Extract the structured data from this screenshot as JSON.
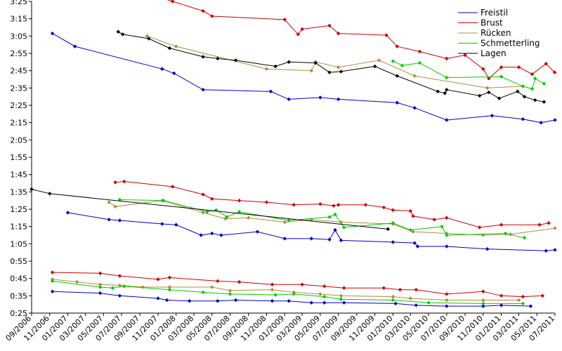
{
  "chart_data": {
    "type": "line",
    "title": "",
    "xlabel": "",
    "ylabel": "",
    "legend_position": "top-right",
    "grid": false,
    "x_range": [
      "2006-09-01",
      "2011-07-01"
    ],
    "y_range_seconds": [
      25,
      205
    ],
    "y_ticks": [
      "0:25",
      "0:35",
      "0:45",
      "0:55",
      "1:05",
      "1:15",
      "1:25",
      "1:35",
      "1:45",
      "1:55",
      "2:05",
      "2:15",
      "2:25",
      "2:35",
      "2:45",
      "2:55",
      "3:05",
      "3:15",
      "3:25"
    ],
    "x_ticks": [
      "09/2006",
      "11/2006",
      "01/2007",
      "03/2007",
      "05/2007",
      "07/2007",
      "09/2007",
      "11/2007",
      "01/2008",
      "03/2008",
      "05/2008",
      "07/2008",
      "09/2008",
      "11/2008",
      "01/2009",
      "03/2009",
      "05/2009",
      "07/2009",
      "09/2009",
      "11/2009",
      "01/2010",
      "03/2010",
      "05/2010",
      "07/2010",
      "09/2010",
      "11/2010",
      "01/2011",
      "03/2011",
      "05/2011",
      "07/2011"
    ],
    "series": [
      {
        "name": "Freistil",
        "color": "#0000cc",
        "lines": [
          [
            [
              "2006-11-10",
              "0:37.5"
            ],
            [
              "2007-04-20",
              "0:36.5"
            ],
            [
              "2007-06-25",
              "0:35"
            ],
            [
              "2007-11-01",
              "0:33.5"
            ],
            [
              "2007-12-01",
              "0:32.5"
            ],
            [
              "2008-02-15",
              "0:32"
            ],
            [
              "2008-05-20",
              "0:32"
            ],
            [
              "2008-07-20",
              "0:32.5"
            ],
            [
              "2008-11-20",
              "0:32"
            ],
            [
              "2009-01-15",
              "0:32"
            ],
            [
              "2009-04-01",
              "0:31"
            ],
            [
              "2009-05-15",
              "0:31"
            ],
            [
              "2009-07-20",
              "0:31"
            ],
            [
              "2010-01-10",
              "0:30.5"
            ],
            [
              "2010-03-20",
              "0:29.5"
            ],
            [
              "2010-07-01",
              "0:29"
            ],
            [
              "2010-11-01",
              "0:29"
            ],
            [
              "2011-01-01",
              "0:29.5"
            ],
            [
              "2011-04-10",
              "0:29"
            ]
          ],
          [
            [
              "2007-01-01",
              "1:23"
            ],
            [
              "2007-05-20",
              "1:19"
            ],
            [
              "2007-06-25",
              "1:18.5"
            ],
            [
              "2007-11-15",
              "1:16.5"
            ],
            [
              "2008-01-01",
              "1:16"
            ],
            [
              "2008-03-25",
              "1:10"
            ],
            [
              "2008-05-01",
              "1:11"
            ],
            [
              "2008-06-01",
              "1:10"
            ],
            [
              "2008-10-01",
              "1:12"
            ],
            [
              "2009-01-01",
              "1:08"
            ],
            [
              "2009-04-01",
              "1:08"
            ],
            [
              "2009-06-01",
              "1:07.5"
            ],
            [
              "2009-06-20",
              "1:13"
            ],
            [
              "2009-07-10",
              "1:07"
            ],
            [
              "2010-01-01",
              "1:06"
            ],
            [
              "2010-03-15",
              "1:05.5"
            ],
            [
              "2010-03-25",
              "1:03.5"
            ],
            [
              "2010-07-01",
              "1:03.5"
            ],
            [
              "2010-11-15",
              "1:02"
            ],
            [
              "2011-06-01",
              "1:01"
            ],
            [
              "2011-07-01",
              "1:01.5"
            ]
          ],
          [
            [
              "2006-11-10",
              "3:06.5"
            ],
            [
              "2007-01-25",
              "2:59"
            ],
            [
              "2007-11-15",
              "2:46"
            ],
            [
              "2007-12-25",
              "2:43.5"
            ],
            [
              "2008-04-01",
              "2:34"
            ],
            [
              "2008-11-15",
              "2:33"
            ],
            [
              "2009-01-15",
              "2:28.5"
            ],
            [
              "2009-05-01",
              "2:29.5"
            ],
            [
              "2009-07-01",
              "2:28.5"
            ],
            [
              "2010-01-15",
              "2:26.5"
            ],
            [
              "2010-03-15",
              "2:23.5"
            ],
            [
              "2010-07-01",
              "2:16.5"
            ],
            [
              "2010-12-01",
              "2:19"
            ],
            [
              "2011-03-15",
              "2:17"
            ],
            [
              "2011-05-15",
              "2:15"
            ],
            [
              "2011-07-01",
              "2:16.5"
            ]
          ]
        ]
      },
      {
        "name": "Brust",
        "color": "#cc0000",
        "lines": [
          [
            [
              "2006-11-10",
              "0:48.5"
            ],
            [
              "2007-04-20",
              "0:48"
            ],
            [
              "2007-06-25",
              "0:46.5"
            ],
            [
              "2007-11-01",
              "0:44.5"
            ],
            [
              "2007-12-10",
              "0:45.5"
            ],
            [
              "2008-05-20",
              "0:43.5"
            ],
            [
              "2008-08-01",
              "0:43"
            ],
            [
              "2008-11-20",
              "0:41.5"
            ],
            [
              "2009-03-01",
              "0:41.5"
            ],
            [
              "2009-05-15",
              "0:40.5"
            ],
            [
              "2009-07-20",
              "0:39.5"
            ],
            [
              "2009-12-01",
              "0:39.5"
            ],
            [
              "2010-01-25",
              "0:38.5"
            ],
            [
              "2010-03-20",
              "0:38.5"
            ],
            [
              "2010-07-01",
              "0:36"
            ],
            [
              "2010-11-01",
              "0:37.5"
            ],
            [
              "2011-01-01",
              "0:35"
            ],
            [
              "2011-03-15",
              "0:34.5"
            ],
            [
              "2011-05-20",
              "0:35"
            ]
          ],
          [
            [
              "2007-06-10",
              "1:40.5"
            ],
            [
              "2007-07-10",
              "1:41"
            ],
            [
              "2007-12-20",
              "1:38"
            ],
            [
              "2008-04-01",
              "1:33.5"
            ],
            [
              "2008-05-01",
              "1:31"
            ],
            [
              "2008-08-01",
              "1:30"
            ],
            [
              "2008-11-01",
              "1:29"
            ],
            [
              "2009-02-01",
              "1:27.5"
            ],
            [
              "2009-05-01",
              "1:28"
            ],
            [
              "2009-06-15",
              "1:27"
            ],
            [
              "2009-07-01",
              "1:27.5"
            ],
            [
              "2009-10-01",
              "1:27.5"
            ],
            [
              "2009-12-01",
              "1:26"
            ],
            [
              "2010-01-01",
              "1:24.5"
            ],
            [
              "2010-03-01",
              "1:24"
            ],
            [
              "2010-03-10",
              "1:21"
            ],
            [
              "2010-05-20",
              "1:19"
            ],
            [
              "2010-07-01",
              "1:20"
            ],
            [
              "2010-10-20",
              "1:14.5"
            ],
            [
              "2011-01-01",
              "1:16"
            ],
            [
              "2011-05-10",
              "1:16"
            ],
            [
              "2011-06-10",
              "1:17"
            ]
          ],
          [
            [
              "2007-11-01",
              "3:27.5"
            ],
            [
              "2007-12-20",
              "3:25"
            ],
            [
              "2008-04-01",
              "3:19.5"
            ],
            [
              "2008-05-01",
              "3:16.5"
            ],
            [
              "2009-01-01",
              "3:14.5"
            ],
            [
              "2009-02-15",
              "3:06"
            ],
            [
              "2009-03-01",
              "3:09"
            ],
            [
              "2009-06-01",
              "3:11"
            ],
            [
              "2009-07-01",
              "3:06.5"
            ],
            [
              "2009-12-10",
              "3:05.5"
            ],
            [
              "2010-01-15",
              "2:59"
            ],
            [
              "2010-04-01",
              "2:56"
            ],
            [
              "2010-07-01",
              "2:52"
            ],
            [
              "2010-09-01",
              "2:54"
            ],
            [
              "2010-11-01",
              "2:46"
            ],
            [
              "2010-11-20",
              "2:40.5"
            ],
            [
              "2011-01-01",
              "2:47"
            ],
            [
              "2011-03-01",
              "2:47"
            ],
            [
              "2011-04-15",
              "2:43"
            ],
            [
              "2011-06-01",
              "2:49"
            ],
            [
              "2011-06-30",
              "2:44"
            ]
          ]
        ]
      },
      {
        "name": "Rücken",
        "color": "#b08c3c",
        "lines": [
          [
            [
              "2006-11-10",
              "0:44.5"
            ],
            [
              "2007-02-01",
              "0:43"
            ],
            [
              "2007-04-20",
              "0:41.5"
            ],
            [
              "2007-06-25",
              "0:41"
            ],
            [
              "2007-09-10",
              "0:40"
            ],
            [
              "2007-12-10",
              "0:40"
            ],
            [
              "2008-05-01",
              "0:40"
            ],
            [
              "2008-07-01",
              "0:38"
            ],
            [
              "2008-11-20",
              "0:38.5"
            ],
            [
              "2009-02-01",
              "0:37"
            ],
            [
              "2009-05-01",
              "0:36"
            ],
            [
              "2009-07-10",
              "0:35"
            ],
            [
              "2010-01-01",
              "0:34.5"
            ],
            [
              "2010-03-01",
              "0:33.5"
            ],
            [
              "2010-07-01",
              "0:32.5"
            ],
            [
              "2010-11-01",
              "0:32.5"
            ],
            [
              "2011-03-01",
              "0:32.5"
            ]
          ],
          [
            [
              "2007-05-20",
              "1:29"
            ],
            [
              "2007-06-10",
              "1:26.5"
            ],
            [
              "2007-11-15",
              "1:30"
            ],
            [
              "2008-04-01",
              "1:23"
            ],
            [
              "2008-06-15",
              "1:19.5"
            ],
            [
              "2008-09-01",
              "1:20"
            ],
            [
              "2009-01-01",
              "1:17.5"
            ],
            [
              "2009-04-01",
              "1:19"
            ],
            [
              "2009-07-10",
              "1:17.5"
            ],
            [
              "2010-01-01",
              "1:16.5"
            ],
            [
              "2010-03-10",
              "1:12"
            ],
            [
              "2010-07-01",
              "1:11"
            ],
            [
              "2010-11-01",
              "1:10"
            ],
            [
              "2011-02-01",
              "1:10.5"
            ],
            [
              "2011-07-01",
              "1:14"
            ]
          ],
          [
            [
              "2007-09-25",
              "3:05"
            ],
            [
              "2008-01-01",
              "2:59"
            ],
            [
              "2008-11-01",
              "2:46"
            ],
            [
              "2009-04-01",
              "2:45"
            ],
            [
              "2009-04-15",
              "2:50"
            ],
            [
              "2009-07-01",
              "2:47"
            ],
            [
              "2009-11-15",
              "2:51"
            ],
            [
              "2010-03-15",
              "2:42"
            ],
            [
              "2010-11-15",
              "2:35"
            ],
            [
              "2011-03-15",
              "2:36"
            ]
          ]
        ]
      },
      {
        "name": "Schmetterling",
        "color": "#00cc00",
        "lines": [
          [
            [
              "2006-11-10",
              "0:43.5"
            ],
            [
              "2007-04-20",
              "0:40"
            ],
            [
              "2007-06-01",
              "0:39.5"
            ],
            [
              "2007-07-10",
              "0:40.5"
            ],
            [
              "2007-12-10",
              "0:38.5"
            ],
            [
              "2008-04-01",
              "0:37"
            ],
            [
              "2008-07-01",
              "0:36"
            ],
            [
              "2008-12-01",
              "0:35.5"
            ],
            [
              "2009-02-01",
              "0:36"
            ],
            [
              "2009-05-15",
              "0:34.5"
            ],
            [
              "2009-07-10",
              "0:33"
            ],
            [
              "2010-01-01",
              "0:32.5"
            ],
            [
              "2010-05-01",
              "0:31"
            ],
            [
              "2010-11-01",
              "0:30.5"
            ],
            [
              "2011-03-15",
              "0:30.5"
            ]
          ],
          [
            [
              "2007-06-25",
              "1:30.5"
            ],
            [
              "2007-11-20",
              "1:30"
            ],
            [
              "2008-04-15",
              "1:23.5"
            ],
            [
              "2008-05-15",
              "1:24.5"
            ],
            [
              "2008-06-20",
              "1:20.5"
            ],
            [
              "2008-08-01",
              "1:23.5"
            ],
            [
              "2009-01-15",
              "1:18.5"
            ],
            [
              "2009-06-01",
              "1:20.5"
            ],
            [
              "2009-06-20",
              "1:22"
            ],
            [
              "2009-07-20",
              "1:14.5"
            ],
            [
              "2010-01-01",
              "1:17"
            ],
            [
              "2010-03-01",
              "1:13"
            ],
            [
              "2010-06-15",
              "1:15"
            ],
            [
              "2010-07-01",
              "1:10"
            ],
            [
              "2011-01-15",
              "1:11"
            ],
            [
              "2011-03-20",
              "1:08.5"
            ]
          ],
          [
            [
              "2010-01-01",
              "2:50.5"
            ],
            [
              "2010-02-01",
              "2:48"
            ],
            [
              "2010-04-01",
              "2:49.5"
            ],
            [
              "2010-07-01",
              "2:41"
            ],
            [
              "2011-01-01",
              "2:41.5"
            ],
            [
              "2011-03-15",
              "2:36"
            ],
            [
              "2011-04-15",
              "2:34.5"
            ],
            [
              "2011-04-25",
              "2:40.5"
            ],
            [
              "2011-05-25",
              "2:37.5"
            ]
          ]
        ]
      },
      {
        "name": "Lagen",
        "color": "#000000",
        "lines": [
          [
            [
              "2006-09-01",
              "1:36.5"
            ],
            [
              "2006-11-01",
              "1:34"
            ],
            [
              "2009-12-15",
              "1:13.5"
            ]
          ],
          [
            [
              "2007-06-20",
              "3:07.5"
            ],
            [
              "2007-07-05",
              "3:06"
            ],
            [
              "2007-10-01",
              "3:03.5"
            ],
            [
              "2007-12-10",
              "2:58"
            ],
            [
              "2008-04-01",
              "2:53"
            ],
            [
              "2008-05-20",
              "2:52"
            ],
            [
              "2008-07-20",
              "2:51"
            ],
            [
              "2008-12-01",
              "2:47.5"
            ],
            [
              "2009-01-15",
              "2:50"
            ],
            [
              "2009-04-15",
              "2:49.5"
            ],
            [
              "2009-06-01",
              "2:44"
            ],
            [
              "2009-07-10",
              "2:44.5"
            ],
            [
              "2009-11-01",
              "2:47.5"
            ],
            [
              "2010-01-15",
              "2:42"
            ],
            [
              "2010-06-01",
              "2:33"
            ],
            [
              "2010-06-25",
              "2:32"
            ],
            [
              "2010-07-01",
              "2:34"
            ],
            [
              "2010-10-20",
              "2:30.5"
            ],
            [
              "2010-11-20",
              "2:32.5"
            ],
            [
              "2010-12-25",
              "2:29"
            ],
            [
              "2011-02-25",
              "2:33"
            ],
            [
              "2011-03-20",
              "2:30"
            ],
            [
              "2011-04-25",
              "2:28"
            ],
            [
              "2011-05-25",
              "2:27"
            ]
          ]
        ]
      }
    ]
  }
}
